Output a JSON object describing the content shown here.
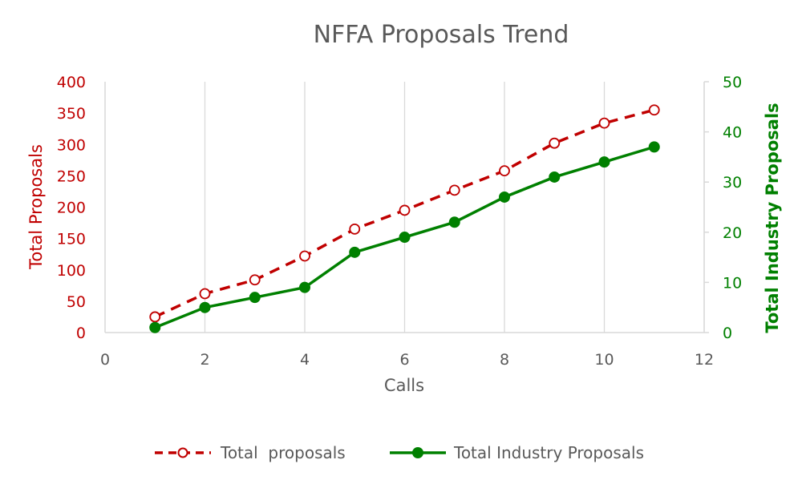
{
  "chart_data": {
    "type": "line",
    "title": "NFFA Proposals Trend",
    "xlabel": "Calls",
    "ylabel": "Total Proposals",
    "y2label": "Total Industry Proposals",
    "xlim": [
      0,
      12
    ],
    "ylim": [
      0,
      400
    ],
    "y2lim": [
      0,
      50
    ],
    "x_ticks": [
      0,
      2,
      4,
      6,
      8,
      10,
      12
    ],
    "y_ticks": [
      0,
      50,
      100,
      150,
      200,
      250,
      300,
      350,
      400
    ],
    "y2_ticks": [
      0,
      10,
      20,
      30,
      40,
      50
    ],
    "grid": "vertical",
    "legend_position": "bottom",
    "x": [
      1,
      2,
      3,
      4,
      5,
      6,
      7,
      8,
      9,
      10,
      11
    ],
    "series": [
      {
        "name": "Total  proposals",
        "axis": "left",
        "style": "dashed-hollow-markers",
        "color": "#c00000",
        "values": [
          25,
          62,
          84,
          122,
          165,
          195,
          227,
          258,
          302,
          334,
          355
        ]
      },
      {
        "name": "Total Industry Proposals",
        "axis": "right",
        "style": "solid-filled-markers",
        "color": "#008000",
        "values": [
          1,
          5,
          7,
          9,
          16,
          19,
          22,
          27,
          31,
          34,
          37
        ]
      }
    ]
  },
  "colors": {
    "left_axis": "#c00000",
    "right_axis": "#008000",
    "grid": "#d9d9d9",
    "text": "#595959"
  }
}
